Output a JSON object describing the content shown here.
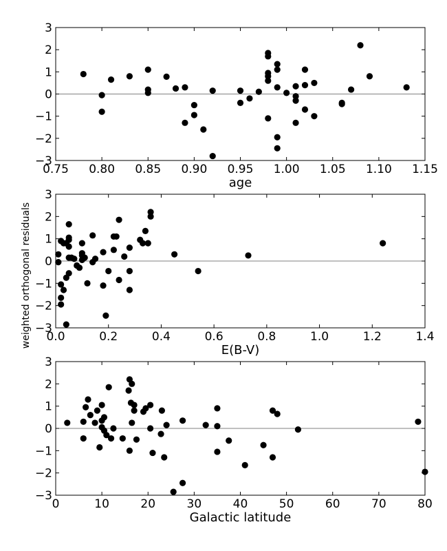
{
  "ylabel": "weighted orthogonal residuals",
  "chart_data": [
    {
      "type": "scatter",
      "xlabel": "age",
      "xlim": [
        0.75,
        1.15
      ],
      "ylim": [
        -3,
        3
      ],
      "xticks": [
        "0.75",
        "0.80",
        "0.85",
        "0.90",
        "0.95",
        "1.00",
        "1.05",
        "1.10",
        "1.15"
      ],
      "yticks": [
        "3",
        "2",
        "1",
        "0",
        "−1",
        "−2",
        "−3"
      ],
      "zero_line": true,
      "points": [
        [
          0.78,
          0.9
        ],
        [
          0.8,
          -0.05
        ],
        [
          0.8,
          -0.8
        ],
        [
          0.81,
          0.65
        ],
        [
          0.83,
          0.8
        ],
        [
          0.85,
          1.1
        ],
        [
          0.85,
          0.2
        ],
        [
          0.85,
          0.05
        ],
        [
          0.87,
          0.78
        ],
        [
          0.88,
          0.25
        ],
        [
          0.89,
          0.3
        ],
        [
          0.89,
          -1.3
        ],
        [
          0.9,
          -0.5
        ],
        [
          0.9,
          -0.95
        ],
        [
          0.91,
          -1.6
        ],
        [
          0.92,
          0.15
        ],
        [
          0.92,
          -2.8
        ],
        [
          0.95,
          0.15
        ],
        [
          0.95,
          -0.4
        ],
        [
          0.96,
          -0.2
        ],
        [
          0.97,
          0.1
        ],
        [
          0.98,
          1.85
        ],
        [
          0.98,
          1.7
        ],
        [
          0.98,
          0.95
        ],
        [
          0.98,
          0.8
        ],
        [
          0.98,
          0.6
        ],
        [
          0.98,
          -1.1
        ],
        [
          0.99,
          1.35
        ],
        [
          0.99,
          1.1
        ],
        [
          0.99,
          0.3
        ],
        [
          0.99,
          -1.95
        ],
        [
          0.99,
          -2.45
        ],
        [
          1.0,
          0.05
        ],
        [
          1.01,
          0.35
        ],
        [
          1.01,
          -0.1
        ],
        [
          1.01,
          -0.3
        ],
        [
          1.01,
          -1.3
        ],
        [
          1.02,
          1.1
        ],
        [
          1.02,
          0.4
        ],
        [
          1.02,
          -0.7
        ],
        [
          1.03,
          0.5
        ],
        [
          1.03,
          -1.0
        ],
        [
          1.06,
          -0.4
        ],
        [
          1.06,
          -0.45
        ],
        [
          1.07,
          0.2
        ],
        [
          1.08,
          2.2
        ],
        [
          1.09,
          0.8
        ],
        [
          1.13,
          0.3
        ]
      ]
    },
    {
      "type": "scatter",
      "xlabel": "E(B-V)",
      "xlim": [
        0.0,
        1.4
      ],
      "ylim": [
        -3,
        3
      ],
      "xticks": [
        "0.0",
        "0.2",
        "0.4",
        "0.6",
        "0.8",
        "1.0",
        "1.2",
        "1.4"
      ],
      "yticks": [
        "3",
        "2",
        "1",
        "0",
        "−1",
        "−2",
        "−3"
      ],
      "zero_line": true,
      "points": [
        [
          0.01,
          0.3
        ],
        [
          0.01,
          -0.05
        ],
        [
          0.02,
          0.9
        ],
        [
          0.02,
          -1.05
        ],
        [
          0.02,
          -1.65
        ],
        [
          0.02,
          -1.95
        ],
        [
          0.03,
          0.8
        ],
        [
          0.03,
          -1.3
        ],
        [
          0.04,
          0.8
        ],
        [
          0.04,
          -0.75
        ],
        [
          0.04,
          -2.85
        ],
        [
          0.05,
          1.65
        ],
        [
          0.05,
          1.05
        ],
        [
          0.05,
          0.95
        ],
        [
          0.05,
          0.65
        ],
        [
          0.05,
          0.15
        ],
        [
          0.05,
          -0.55
        ],
        [
          0.06,
          0.15
        ],
        [
          0.07,
          0.1
        ],
        [
          0.08,
          -0.2
        ],
        [
          0.09,
          -0.3
        ],
        [
          0.1,
          0.8
        ],
        [
          0.1,
          0.35
        ],
        [
          0.1,
          0.25
        ],
        [
          0.1,
          0.05
        ],
        [
          0.11,
          0.15
        ],
        [
          0.12,
          -1.0
        ],
        [
          0.14,
          1.15
        ],
        [
          0.14,
          -0.05
        ],
        [
          0.15,
          0.1
        ],
        [
          0.18,
          0.4
        ],
        [
          0.18,
          -1.1
        ],
        [
          0.19,
          -2.45
        ],
        [
          0.2,
          -0.45
        ],
        [
          0.22,
          1.1
        ],
        [
          0.22,
          0.5
        ],
        [
          0.23,
          1.1
        ],
        [
          0.24,
          1.85
        ],
        [
          0.24,
          -0.85
        ],
        [
          0.26,
          0.2
        ],
        [
          0.28,
          0.6
        ],
        [
          0.28,
          -0.45
        ],
        [
          0.28,
          -1.3
        ],
        [
          0.32,
          0.95
        ],
        [
          0.33,
          0.8
        ],
        [
          0.34,
          1.35
        ],
        [
          0.35,
          0.8
        ],
        [
          0.36,
          2.2
        ],
        [
          0.36,
          2.0
        ],
        [
          0.45,
          0.3
        ],
        [
          0.54,
          -0.45
        ],
        [
          0.73,
          0.25
        ],
        [
          1.24,
          0.8
        ]
      ]
    },
    {
      "type": "scatter",
      "xlabel": "Galactic latitude",
      "xlim": [
        0,
        80
      ],
      "ylim": [
        -3,
        3
      ],
      "xticks": [
        "0",
        "10",
        "20",
        "30",
        "40",
        "50",
        "60",
        "70",
        "80"
      ],
      "yticks": [
        "3",
        "2",
        "1",
        "0",
        "−1",
        "−2",
        "−3"
      ],
      "zero_line": true,
      "points": [
        [
          2.5,
          0.25
        ],
        [
          6,
          0.3
        ],
        [
          6,
          -0.45
        ],
        [
          6.5,
          0.95
        ],
        [
          7,
          1.3
        ],
        [
          7.5,
          0.6
        ],
        [
          8.5,
          0.25
        ],
        [
          9,
          0.8
        ],
        [
          9.5,
          -0.85
        ],
        [
          10,
          1.05
        ],
        [
          10,
          0.35
        ],
        [
          10,
          0.05
        ],
        [
          10.5,
          0.5
        ],
        [
          10.5,
          -0.1
        ],
        [
          11,
          -0.3
        ],
        [
          11.5,
          1.85
        ],
        [
          12,
          -0.45
        ],
        [
          12.5,
          0.0
        ],
        [
          14.5,
          -0.45
        ],
        [
          15.8,
          1.7
        ],
        [
          16,
          2.2
        ],
        [
          16,
          -1.0
        ],
        [
          16.3,
          1.15
        ],
        [
          16.5,
          2.0
        ],
        [
          16.5,
          0.25
        ],
        [
          17,
          1.05
        ],
        [
          17,
          0.8
        ],
        [
          17.5,
          -0.5
        ],
        [
          19,
          0.75
        ],
        [
          19.5,
          0.9
        ],
        [
          20.5,
          1.05
        ],
        [
          20.5,
          0.0
        ],
        [
          21,
          -1.1
        ],
        [
          22.8,
          -0.25
        ],
        [
          23,
          0.8
        ],
        [
          23.5,
          -1.3
        ],
        [
          24,
          0.15
        ],
        [
          25.5,
          -2.85
        ],
        [
          27.5,
          -2.45
        ],
        [
          27.5,
          0.35
        ],
        [
          32.5,
          0.15
        ],
        [
          35,
          0.9
        ],
        [
          35,
          0.1
        ],
        [
          35,
          -1.05
        ],
        [
          37.5,
          -0.55
        ],
        [
          41,
          -1.65
        ],
        [
          45,
          -0.75
        ],
        [
          47,
          0.8
        ],
        [
          47,
          -1.3
        ],
        [
          48,
          0.65
        ],
        [
          52.5,
          -0.05
        ],
        [
          78.5,
          0.3
        ],
        [
          80,
          -1.95
        ]
      ]
    }
  ]
}
